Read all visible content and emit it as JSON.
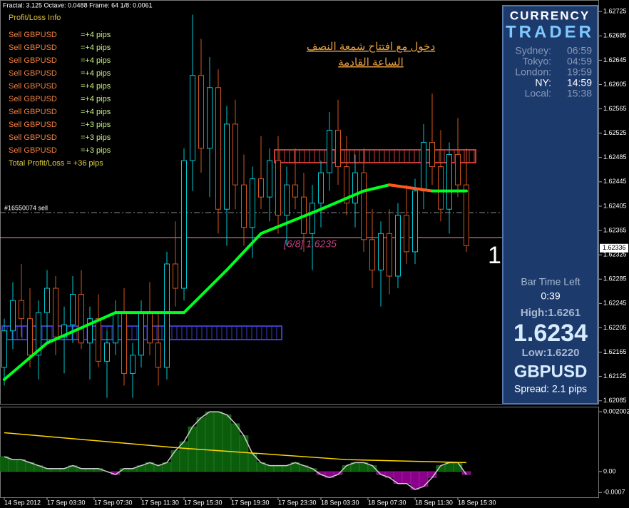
{
  "chart_data": {
    "type": "candlestick",
    "info": "Fractal: 3.125    Octave: 0.0488    Frame: 64    1/8: 0.0061",
    "profit": {
      "title": "Profit/Loss Info",
      "rows": [
        [
          "Sell GBPUSD",
          "=+4 pips"
        ],
        [
          "Sell GBPUSD",
          "=+4 pips"
        ],
        [
          "Sell GBPUSD",
          "=+4 pips"
        ],
        [
          "Sell GBPUSD",
          "=+4 pips"
        ],
        [
          "Sell GBPUSD",
          "=+4 pips"
        ],
        [
          "Sell GBPUSD",
          "=+4 pips"
        ],
        [
          "Sell GBPUSD",
          "=+4 pips"
        ],
        [
          "Sell GBPUSD",
          "=+3 pips"
        ],
        [
          "Sell GBPUSD",
          "=+3 pips"
        ],
        [
          "Sell GBPUSD",
          "=+3 pips"
        ]
      ],
      "total": "Total Profit/Loss =  +36 pips"
    },
    "note": [
      "دخول مع افتتاح شمعة النصف",
      "الساعة القادمة"
    ],
    "order_label": "#16550074 sell",
    "level_label": "[6/8]  1.6235",
    "big_label": "1",
    "price_tag": 1.62336,
    "candle_up_color": "#00c8d2",
    "candle_down_color": "#d2561e",
    "ylim": [
      1.6208,
      1.62744
    ],
    "yticks": [
      1.62725,
      1.62685,
      1.62645,
      1.62605,
      1.62565,
      1.62525,
      1.62485,
      1.62445,
      1.62405,
      1.62365,
      1.62325,
      1.62285,
      1.62245,
      1.62205,
      1.62165,
      1.62125,
      1.62085
    ],
    "xticks": [
      {
        "value": 0,
        "label": "14 Sep 2012"
      },
      {
        "value": 5,
        "label": "17 Sep 03:30"
      },
      {
        "value": 10.5,
        "label": "17 Sep 07:30"
      },
      {
        "value": 16,
        "label": "17 Sep 11:30"
      },
      {
        "value": 21,
        "label": "17 Sep 15:30"
      },
      {
        "value": 26.5,
        "label": "17 Sep 19:30"
      },
      {
        "value": 32,
        "label": "17 Sep 23:30"
      },
      {
        "value": 37,
        "label": "18 Sep 03:30"
      },
      {
        "value": 42.5,
        "label": "18 Sep 07:30"
      },
      {
        "value": 48,
        "label": "18 Sep 11:30"
      },
      {
        "value": 53,
        "label": "18 Sep 15:30"
      }
    ],
    "candles": [
      [
        1.6214,
        1.6222,
        1.6211,
        1.622
      ],
      [
        1.622,
        1.6228,
        1.6217,
        1.6225
      ],
      [
        1.6225,
        1.6231,
        1.6219,
        1.6222
      ],
      [
        1.6222,
        1.6227,
        1.6214,
        1.6216
      ],
      [
        1.6216,
        1.6225,
        1.6212,
        1.6223
      ],
      [
        1.6223,
        1.623,
        1.6218,
        1.6227
      ],
      [
        1.6227,
        1.6229,
        1.6216,
        1.6219
      ],
      [
        1.6219,
        1.6224,
        1.6213,
        1.6221
      ],
      [
        1.6221,
        1.6229,
        1.6218,
        1.6226
      ],
      [
        1.6226,
        1.623,
        1.6217,
        1.6218
      ],
      [
        1.6218,
        1.6224,
        1.6212,
        1.6222
      ],
      [
        1.6222,
        1.6226,
        1.6214,
        1.6215
      ],
      [
        1.6215,
        1.622,
        1.6209,
        1.6218
      ],
      [
        1.6218,
        1.6225,
        1.6216,
        1.6223
      ],
      [
        1.6223,
        1.6227,
        1.6211,
        1.6213
      ],
      [
        1.6213,
        1.6218,
        1.6209,
        1.6216
      ],
      [
        1.6216,
        1.6225,
        1.6214,
        1.6223
      ],
      [
        1.6223,
        1.6228,
        1.6216,
        1.6218
      ],
      [
        1.6218,
        1.6223,
        1.6211,
        1.6214
      ],
      [
        1.6214,
        1.6233,
        1.6212,
        1.6231
      ],
      [
        1.6231,
        1.6238,
        1.6224,
        1.6227
      ],
      [
        1.6227,
        1.625,
        1.6225,
        1.6248
      ],
      [
        1.6248,
        1.6272,
        1.6243,
        1.6262
      ],
      [
        1.6262,
        1.6268,
        1.6246,
        1.625
      ],
      [
        1.625,
        1.6265,
        1.6242,
        1.626
      ],
      [
        1.626,
        1.6263,
        1.6236,
        1.624
      ],
      [
        1.624,
        1.6257,
        1.6234,
        1.6254
      ],
      [
        1.6254,
        1.6258,
        1.624,
        1.6244
      ],
      [
        1.6244,
        1.6249,
        1.6234,
        1.6237
      ],
      [
        1.6237,
        1.6247,
        1.6232,
        1.6245
      ],
      [
        1.6245,
        1.6252,
        1.624,
        1.6242
      ],
      [
        1.6242,
        1.625,
        1.6238,
        1.6248
      ],
      [
        1.6248,
        1.6252,
        1.6236,
        1.6239
      ],
      [
        1.6239,
        1.6247,
        1.6234,
        1.6244
      ],
      [
        1.6244,
        1.625,
        1.624,
        1.6242
      ],
      [
        1.6242,
        1.6246,
        1.6233,
        1.6236
      ],
      [
        1.6236,
        1.6244,
        1.623,
        1.6241
      ],
      [
        1.6241,
        1.6248,
        1.6237,
        1.6246
      ],
      [
        1.6246,
        1.6256,
        1.6243,
        1.6253
      ],
      [
        1.6253,
        1.6258,
        1.6244,
        1.6247
      ],
      [
        1.6247,
        1.6252,
        1.6239,
        1.6241
      ],
      [
        1.6241,
        1.6249,
        1.6237,
        1.6246
      ],
      [
        1.6246,
        1.625,
        1.6233,
        1.6235
      ],
      [
        1.6235,
        1.624,
        1.6227,
        1.623
      ],
      [
        1.623,
        1.6238,
        1.6224,
        1.6236
      ],
      [
        1.6236,
        1.624,
        1.6226,
        1.6229
      ],
      [
        1.6229,
        1.6241,
        1.6227,
        1.6239
      ],
      [
        1.6239,
        1.6244,
        1.6231,
        1.6233
      ],
      [
        1.6233,
        1.6245,
        1.6231,
        1.6243
      ],
      [
        1.6243,
        1.6254,
        1.624,
        1.6251
      ],
      [
        1.6251,
        1.6259,
        1.6244,
        1.6247
      ],
      [
        1.6247,
        1.6253,
        1.6238,
        1.624
      ],
      [
        1.624,
        1.6251,
        1.6236,
        1.6249
      ],
      [
        1.6249,
        1.6255,
        1.6242,
        1.6244
      ],
      [
        1.6244,
        1.625,
        1.6233,
        1.6234
      ]
    ],
    "ma": {
      "x": [
        0,
        5,
        13,
        17,
        21,
        26,
        30,
        37,
        42,
        45,
        50,
        54
      ],
      "values": [
        1.6212,
        1.6218,
        1.6223,
        1.6223,
        1.6223,
        1.623,
        1.6236,
        1.624,
        1.6243,
        1.6244,
        1.6243,
        1.6243
      ],
      "up_color": "#00ff20",
      "down_color": "#ff5a1e"
    },
    "osc": {
      "ylim": [
        -0.00086,
        0.00217
      ],
      "yticks": [
        0.002002,
        {
          "value": 0,
          "label": "0.00"
        },
        -0.0007
      ],
      "histogram": [
        0.0005,
        0.0004,
        0.0004,
        0.0003,
        0.0002,
        0.0001,
        0.0001,
        0.0001,
        0.0002,
        0.0001,
        0.0001,
        0.0001,
        0,
        -0.0001,
        0.0001,
        0.0001,
        0.0002,
        0.0003,
        0.0002,
        0.0003,
        0.0007,
        0.001,
        0.0015,
        0.0018,
        0.002,
        0.002,
        0.0019,
        0.0016,
        0.0012,
        0.0006,
        0.0003,
        0.0002,
        0.0002,
        0.0002,
        0.0003,
        0.0002,
        0.0001,
        -0.0001,
        -0.0002,
        -0.0001,
        0.0002,
        0.0003,
        0.0003,
        0.0002,
        -0.0001,
        -0.0002,
        -0.0004,
        -0.0004,
        -0.0006,
        -0.0005,
        -0.0002,
        0.0002,
        0.0003,
        0.0003,
        -0.0001
      ],
      "pos_color": "#0b5c0b",
      "neg_color": "#8a008a",
      "signal": {
        "x": [
          0,
          20,
          40,
          54
        ],
        "values": [
          0.0013,
          0.0008,
          0.0004,
          0.0003
        ],
        "color": "#ffd700"
      }
    },
    "panel": {
      "title": [
        "CURRENCY",
        "TRADER"
      ],
      "clocks": [
        [
          "Sydney:",
          "06:59"
        ],
        [
          "Tokyo:",
          "04:59"
        ],
        [
          "London:",
          "19:59"
        ],
        [
          "NY:",
          "14:59"
        ],
        [
          "Local:",
          "15:38"
        ]
      ],
      "bar_time_label": "Bar Time Left",
      "bar_time": "0:39",
      "high": "High:1.6261",
      "price": "1.6234",
      "low": "Low:1.6220",
      "symbol": "GBPUSD",
      "spread": "Spread: 2.1 pips"
    }
  }
}
